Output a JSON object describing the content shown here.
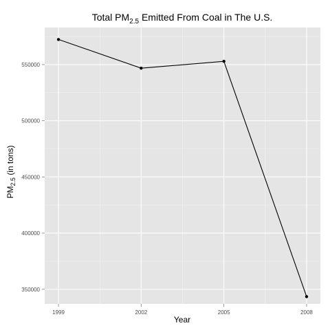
{
  "chart_data": {
    "type": "line",
    "title": {
      "prefix": "Total PM",
      "subscript": "2.5",
      "suffix": " Emitted From Coal in The U.S."
    },
    "xlabel": "Year",
    "ylabel": {
      "prefix": "PM",
      "subscript": "2.5",
      "suffix": " (in tons)"
    },
    "x_ticks": [
      "1999",
      "2002",
      "2005",
      "2008"
    ],
    "y_ticks": [
      "350000",
      "400000",
      "450000",
      "500000",
      "550000"
    ],
    "xlim": [
      1998.5,
      2008.5
    ],
    "ylim": [
      337000,
      583000
    ],
    "grid": true,
    "x": [
      1999,
      2002,
      2005,
      2008
    ],
    "series": [
      {
        "values": [
          572346,
          546789,
          552881,
          343432
        ]
      }
    ],
    "colors": {
      "panel_background": "#e5e5e5",
      "grid_major": "#ffffff",
      "grid_minor": "#f2f2f2",
      "line": "#000000"
    }
  }
}
